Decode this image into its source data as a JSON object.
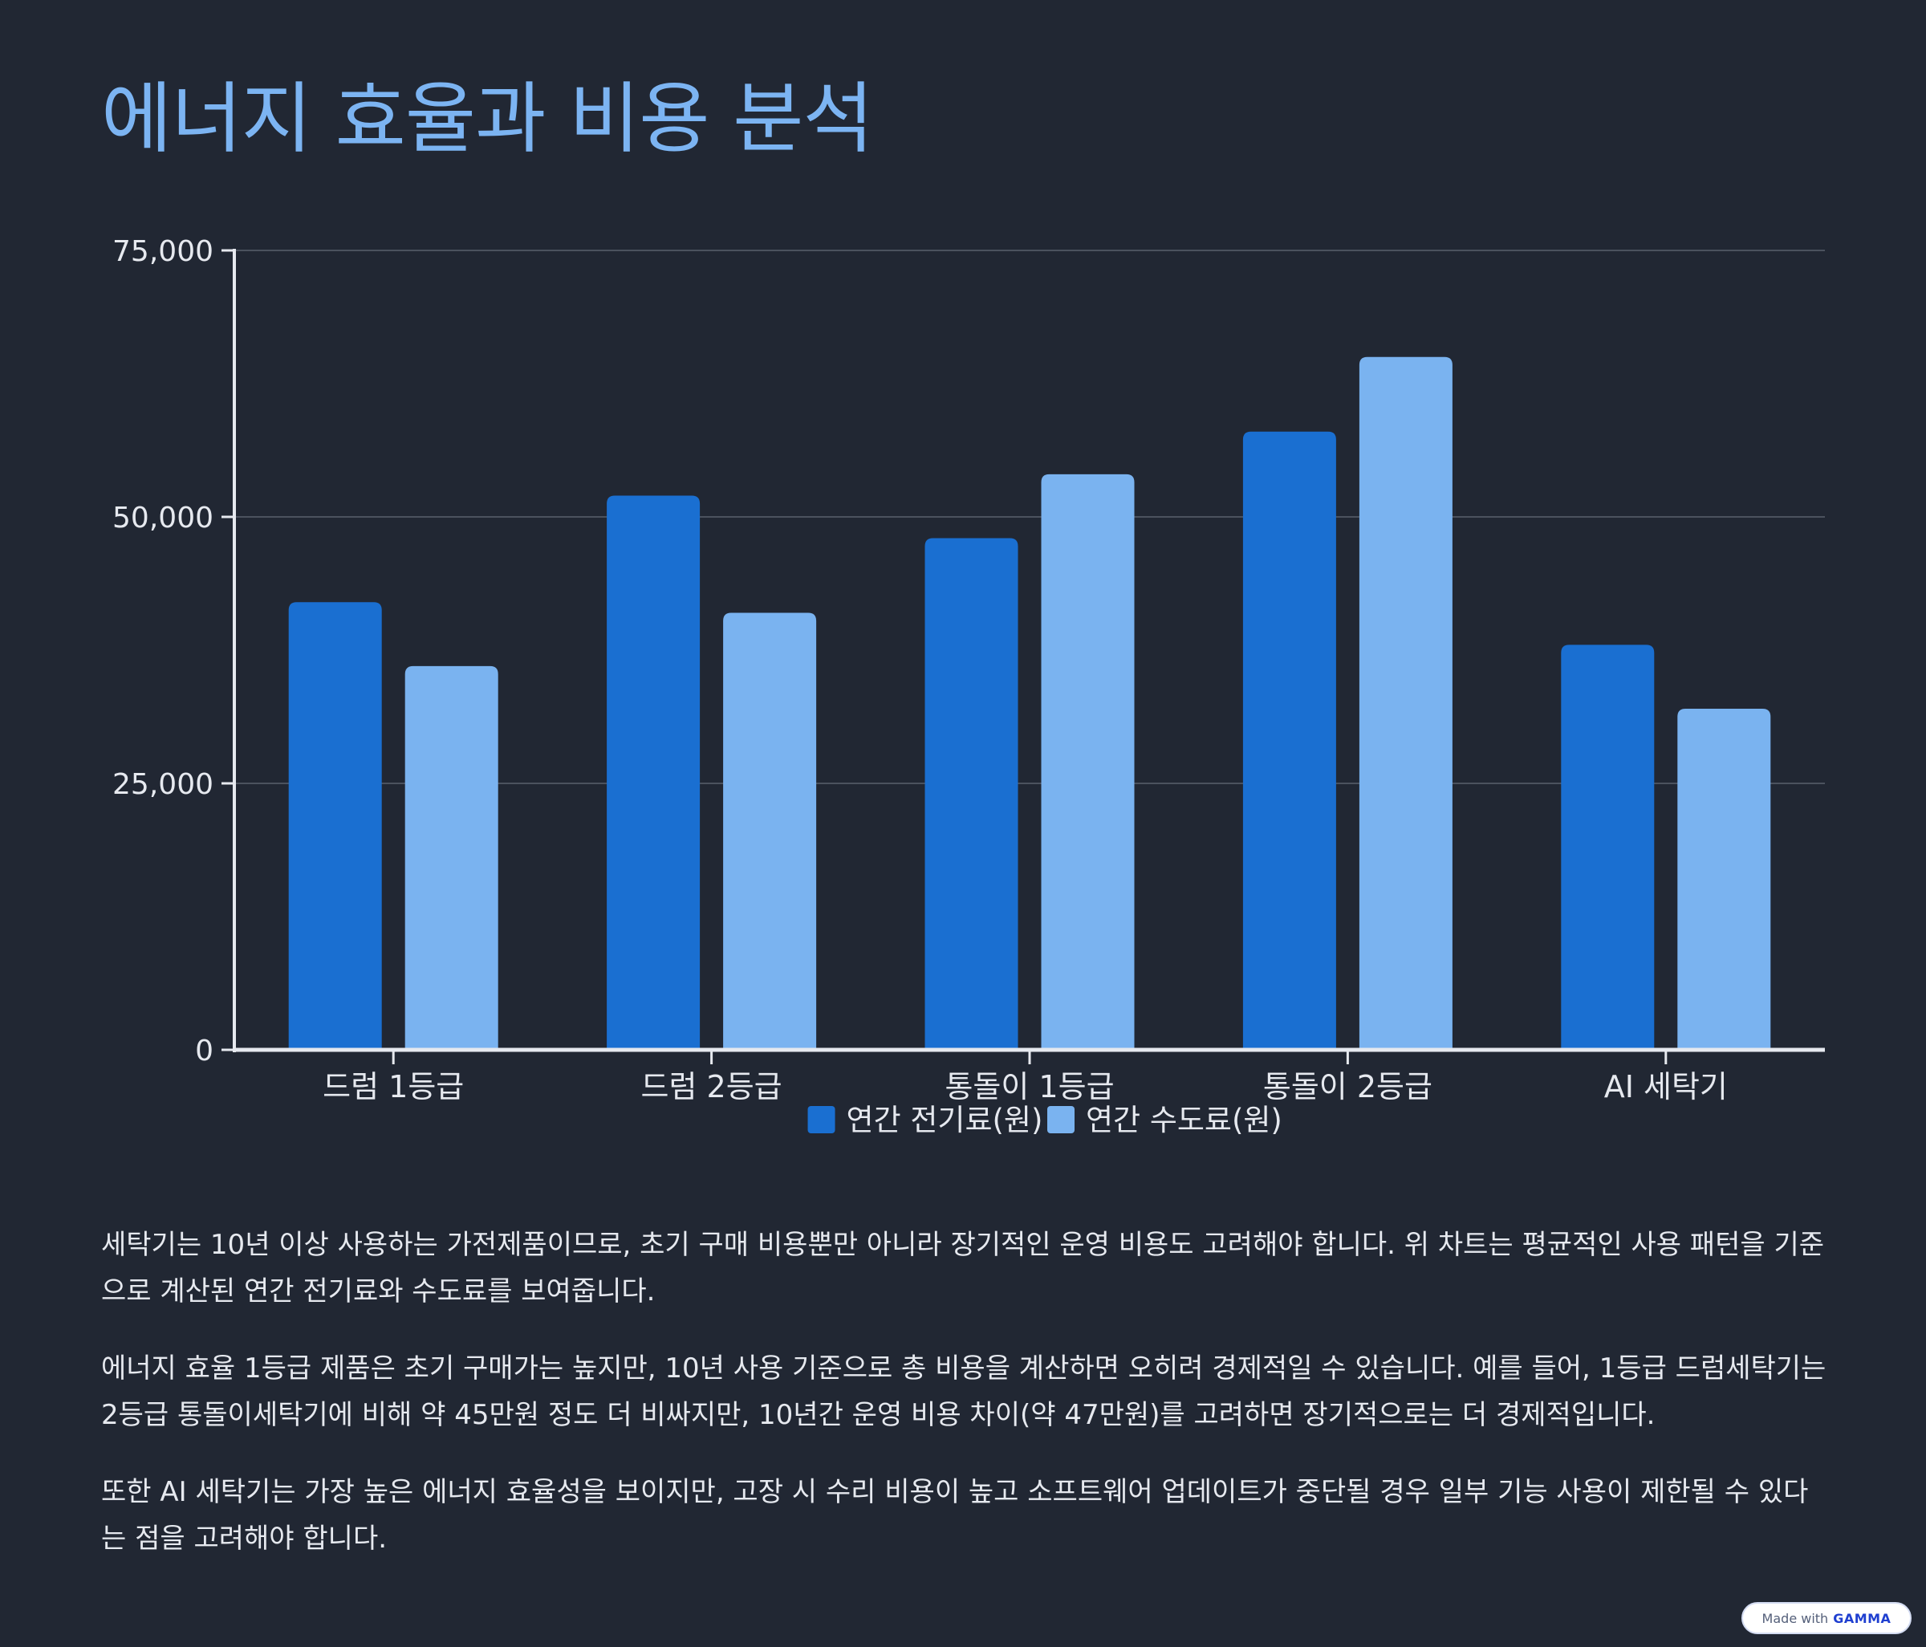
{
  "page": {
    "title": "에너지 효율과 비용 분석"
  },
  "chart_data": {
    "type": "bar",
    "title": "",
    "xlabel": "",
    "ylabel": "",
    "categories": [
      "드럼 1등급",
      "드럼 2등급",
      "통돌이 1등급",
      "통돌이 2등급",
      "AI 세탁기"
    ],
    "series": [
      {
        "name": "연간 전기료(원)",
        "color": "#1a6fd1",
        "values": [
          42000,
          52000,
          48000,
          58000,
          38000
        ]
      },
      {
        "name": "연간 수도료(원)",
        "color": "#7ab3f0",
        "values": [
          36000,
          41000,
          54000,
          65000,
          32000
        ]
      }
    ],
    "ylim": [
      0,
      75000
    ],
    "yticks": [
      0,
      25000,
      50000,
      75000
    ],
    "ytick_labels": [
      "0",
      "25,000",
      "50,000",
      "75,000"
    ],
    "grid": true,
    "legend": "bottom-center"
  },
  "paragraphs": [
    "세탁기는 10년 이상 사용하는 가전제품이므로, 초기 구매 비용뿐만 아니라 장기적인 운영 비용도 고려해야 합니다. 위 차트는 평균적인 사용 패턴을 기준으로 계산된 연간 전기료와 수도료를 보여줍니다.",
    "에너지 효율 1등급 제품은 초기 구매가는 높지만, 10년 사용 기준으로 총 비용을 계산하면 오히려 경제적일 수 있습니다. 예를 들어, 1등급 드럼세탁기는 2등급 통돌이세탁기에 비해 약 45만원 정도 더 비싸지만, 10년간 운영 비용 차이(약 47만원)를 고려하면 장기적으로는 더 경제적입니다.",
    "또한 AI 세탁기는 가장 높은 에너지 효율성을 보이지만, 고장 시 수리 비용이 높고 소프트웨어 업데이트가 중단될 경우 일부 기능 사용이 제한될 수 있다는 점을 고려해야 합니다."
  ],
  "badge": {
    "made_with": "Made with",
    "brand": "GAMMA"
  }
}
